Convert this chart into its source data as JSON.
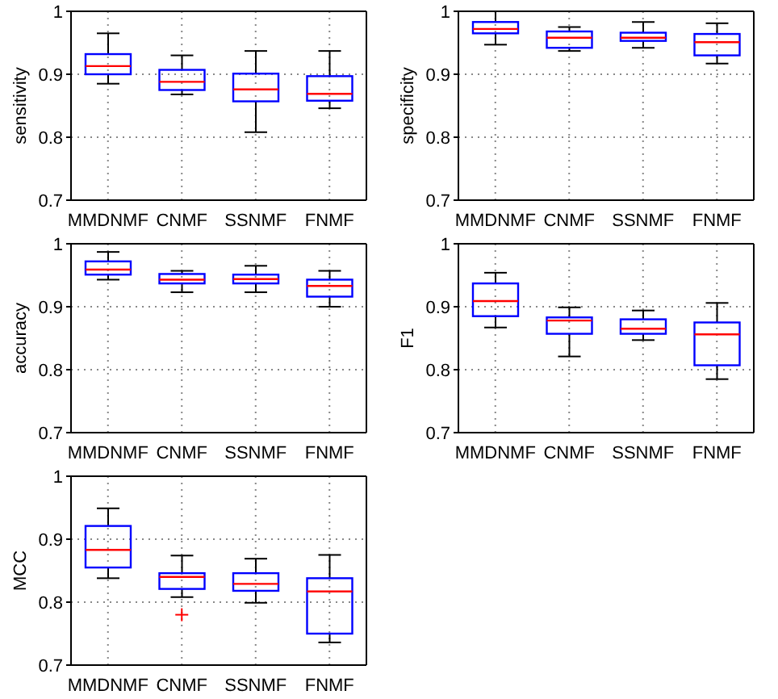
{
  "chart_data": [
    {
      "type": "box",
      "ylabel": "sensitivity",
      "categories": [
        "MMDNMF",
        "CNMF",
        "SSNMF",
        "FNMF"
      ],
      "ylim": [
        0.7,
        1
      ],
      "yticks": [
        0.7,
        0.8,
        0.9,
        1
      ],
      "grid": true,
      "series": [
        {
          "color": "#0000ff",
          "boxes": [
            {
              "low": 0.885,
              "q1": 0.9,
              "median": 0.913,
              "q3": 0.932,
              "high": 0.965
            },
            {
              "low": 0.868,
              "q1": 0.875,
              "median": 0.888,
              "q3": 0.907,
              "high": 0.93
            },
            {
              "low": 0.808,
              "q1": 0.857,
              "median": 0.876,
              "q3": 0.901,
              "high": 0.937
            },
            {
              "low": 0.846,
              "q1": 0.858,
              "median": 0.869,
              "q3": 0.897,
              "high": 0.937
            }
          ]
        }
      ]
    },
    {
      "type": "box",
      "ylabel": "specificity",
      "categories": [
        "MMDNMF",
        "CNMF",
        "SSNMF",
        "FNMF"
      ],
      "ylim": [
        0.7,
        1
      ],
      "yticks": [
        0.7,
        0.8,
        0.9,
        1
      ],
      "grid": true,
      "series": [
        {
          "color": "#0000ff",
          "boxes": [
            {
              "low": 0.947,
              "q1": 0.965,
              "median": 0.972,
              "q3": 0.983,
              "high": 1.0
            },
            {
              "low": 0.937,
              "q1": 0.942,
              "median": 0.958,
              "q3": 0.968,
              "high": 0.975
            },
            {
              "low": 0.942,
              "q1": 0.953,
              "median": 0.958,
              "q3": 0.966,
              "high": 0.983
            },
            {
              "low": 0.917,
              "q1": 0.93,
              "median": 0.951,
              "q3": 0.964,
              "high": 0.981
            }
          ]
        }
      ]
    },
    {
      "type": "box",
      "ylabel": "accuracy",
      "categories": [
        "MMDNMF",
        "CNMF",
        "SSNMF",
        "FNMF"
      ],
      "ylim": [
        0.7,
        1
      ],
      "yticks": [
        0.7,
        0.8,
        0.9,
        1
      ],
      "grid": true,
      "series": [
        {
          "color": "#0000ff",
          "boxes": [
            {
              "low": 0.943,
              "q1": 0.951,
              "median": 0.959,
              "q3": 0.972,
              "high": 0.987
            },
            {
              "low": 0.923,
              "q1": 0.937,
              "median": 0.943,
              "q3": 0.952,
              "high": 0.957
            },
            {
              "low": 0.923,
              "q1": 0.937,
              "median": 0.944,
              "q3": 0.951,
              "high": 0.965
            },
            {
              "low": 0.9,
              "q1": 0.916,
              "median": 0.933,
              "q3": 0.943,
              "high": 0.957
            }
          ]
        }
      ]
    },
    {
      "type": "box",
      "ylabel": "F1",
      "categories": [
        "MMDNMF",
        "CNMF",
        "SSNMF",
        "FNMF"
      ],
      "ylim": [
        0.7,
        1
      ],
      "yticks": [
        0.7,
        0.8,
        0.9,
        1
      ],
      "grid": true,
      "series": [
        {
          "color": "#0000ff",
          "boxes": [
            {
              "low": 0.867,
              "q1": 0.885,
              "median": 0.909,
              "q3": 0.937,
              "high": 0.954
            },
            {
              "low": 0.821,
              "q1": 0.857,
              "median": 0.878,
              "q3": 0.883,
              "high": 0.899
            },
            {
              "low": 0.847,
              "q1": 0.857,
              "median": 0.865,
              "q3": 0.88,
              "high": 0.894
            },
            {
              "low": 0.785,
              "q1": 0.807,
              "median": 0.856,
              "q3": 0.875,
              "high": 0.906
            }
          ]
        }
      ]
    },
    {
      "type": "box",
      "ylabel": "MCC",
      "categories": [
        "MMDNMF",
        "CNMF",
        "SSNMF",
        "FNMF"
      ],
      "ylim": [
        0.7,
        1
      ],
      "yticks": [
        0.7,
        0.8,
        0.9,
        1
      ],
      "grid": true,
      "series": [
        {
          "color": "#0000ff",
          "boxes": [
            {
              "low": 0.838,
              "q1": 0.855,
              "median": 0.883,
              "q3": 0.921,
              "high": 0.949
            },
            {
              "low": 0.808,
              "q1": 0.821,
              "median": 0.84,
              "q3": 0.846,
              "high": 0.874,
              "outliers": [
                0.78
              ]
            },
            {
              "low": 0.799,
              "q1": 0.818,
              "median": 0.829,
              "q3": 0.846,
              "high": 0.869
            },
            {
              "low": 0.736,
              "q1": 0.75,
              "median": 0.817,
              "q3": 0.838,
              "high": 0.875
            }
          ]
        }
      ]
    }
  ]
}
